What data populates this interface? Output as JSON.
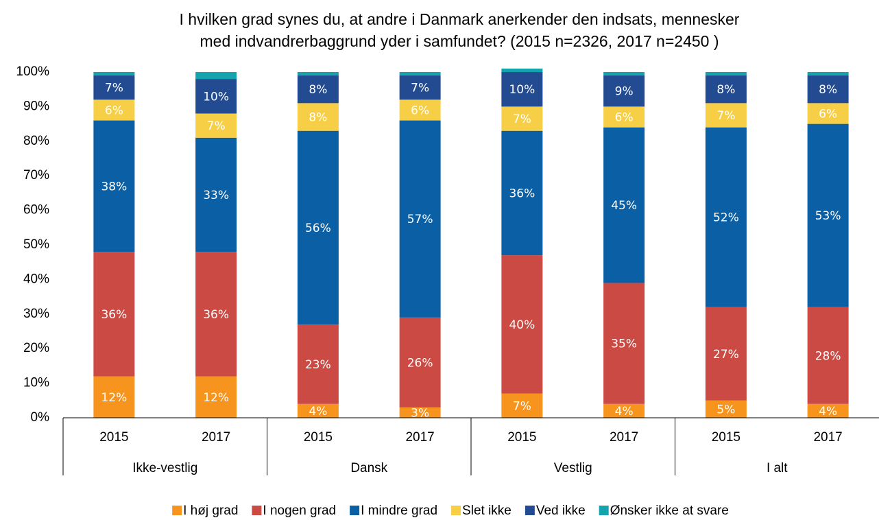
{
  "chart_data": {
    "type": "stacked_bar",
    "title": [
      "I hvilken grad synes du, at andre i Danmark anerkender den indsats, mennesker",
      "med indvandrerbaggrund yder i samfundet? (2015 n=2326, 2017 n=2450 )"
    ],
    "categories": [
      "2015",
      "2017",
      "2015",
      "2017",
      "2015",
      "2017",
      "2015",
      "2017"
    ],
    "groups": [
      "Ikke-vestlig",
      "Dansk",
      "Vestlig",
      "I alt"
    ],
    "ylim": [
      0,
      100
    ],
    "yticks": [
      {
        "value": 0,
        "label": "0%"
      },
      {
        "value": 10,
        "label": "10%"
      },
      {
        "value": 20,
        "label": "20%"
      },
      {
        "value": 30,
        "label": "30%"
      },
      {
        "value": 40,
        "label": "40%"
      },
      {
        "value": 50,
        "label": "50%"
      },
      {
        "value": 60,
        "label": "60%"
      },
      {
        "value": 70,
        "label": "70%"
      },
      {
        "value": 80,
        "label": "80%"
      },
      {
        "value": 90,
        "label": "90%"
      },
      {
        "value": 100,
        "label": "100%"
      }
    ],
    "grid": false,
    "legend": "bottom",
    "series": [
      {
        "name": "I høj grad",
        "color": "#f7941d",
        "values": [
          12,
          12,
          4,
          3,
          7,
          4,
          5,
          4
        ],
        "value_labels": [
          "12%",
          "12%",
          "4%",
          "3%",
          "7%",
          "4%",
          "5%",
          "4%"
        ]
      },
      {
        "name": "I nogen grad",
        "color": "#cb4a43",
        "values": [
          36,
          36,
          23,
          26,
          40,
          35,
          27,
          28
        ],
        "value_labels": [
          "36%",
          "36%",
          "23%",
          "26%",
          "40%",
          "35%",
          "27%",
          "28%"
        ]
      },
      {
        "name": "I mindre grad",
        "color": "#0b5fa5",
        "values": [
          38,
          33,
          56,
          57,
          36,
          45,
          52,
          53
        ],
        "value_labels": [
          "38%",
          "33%",
          "56%",
          "57%",
          "36%",
          "45%",
          "52%",
          "53%"
        ]
      },
      {
        "name": "Slet ikke",
        "color": "#f6cf46",
        "values": [
          6,
          7,
          8,
          6,
          7,
          6,
          7,
          6
        ],
        "value_labels": [
          "6%",
          "7%",
          "8%",
          "6%",
          "7%",
          "6%",
          "7%",
          "6%"
        ]
      },
      {
        "name": "Ved ikke",
        "color": "#234b92",
        "values": [
          7,
          10,
          8,
          7,
          10,
          9,
          8,
          8
        ],
        "value_labels": [
          "7%",
          "10%",
          "8%",
          "7%",
          "10%",
          "9%",
          "8%",
          "8%"
        ]
      },
      {
        "name": "Ønsker ikke at svare",
        "color": "#15a3ad",
        "values": [
          1,
          2,
          1,
          1,
          1,
          1,
          1,
          1
        ]
      }
    ]
  }
}
